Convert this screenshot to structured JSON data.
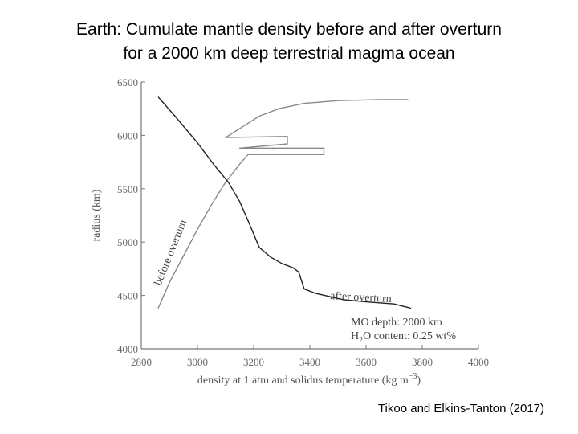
{
  "header": {
    "title_line1": "Earth: Cumulate mantle density before and after overturn",
    "title_line2": "for a 2000 km deep terrestrial magma ocean"
  },
  "citation": "Tikoo and Elkins-Tanton (2017)",
  "chart_data": {
    "type": "line",
    "xlabel": "density at 1 atm and solidus temperature (kg m",
    "xlabel_sup": "−3",
    "xlabel_end": ")",
    "ylabel": "radius (km)",
    "xlim": [
      2800,
      4000
    ],
    "ylim": [
      4000,
      6500
    ],
    "xticks": [
      2800,
      3000,
      3200,
      3400,
      3600,
      3800,
      4000
    ],
    "yticks": [
      4000,
      4500,
      5000,
      5500,
      6000,
      6500
    ],
    "grid": false,
    "colors": {
      "before": "#8a8a8a",
      "after": "#222222",
      "axis": "#777777"
    },
    "series": [
      {
        "name": "before overturn",
        "points": [
          [
            2860,
            4380
          ],
          [
            2900,
            4620
          ],
          [
            2950,
            4870
          ],
          [
            3000,
            5120
          ],
          [
            3050,
            5350
          ],
          [
            3100,
            5560
          ],
          [
            3150,
            5730
          ],
          [
            3180,
            5820
          ],
          [
            3450,
            5820
          ],
          [
            3450,
            5880
          ],
          [
            3150,
            5880
          ],
          [
            3320,
            5920
          ],
          [
            3320,
            5990
          ],
          [
            3100,
            5980
          ],
          [
            3160,
            6080
          ],
          [
            3220,
            6180
          ],
          [
            3290,
            6250
          ],
          [
            3380,
            6300
          ],
          [
            3500,
            6325
          ],
          [
            3650,
            6335
          ],
          [
            3750,
            6335
          ]
        ]
      },
      {
        "name": "after overturn",
        "points": [
          [
            2860,
            6360
          ],
          [
            2920,
            6180
          ],
          [
            3000,
            5930
          ],
          [
            3060,
            5720
          ],
          [
            3110,
            5560
          ],
          [
            3150,
            5380
          ],
          [
            3180,
            5200
          ],
          [
            3220,
            4950
          ],
          [
            3260,
            4860
          ],
          [
            3300,
            4800
          ],
          [
            3340,
            4760
          ],
          [
            3360,
            4720
          ],
          [
            3380,
            4560
          ],
          [
            3420,
            4520
          ],
          [
            3470,
            4490
          ],
          [
            3520,
            4460
          ],
          [
            3600,
            4440
          ],
          [
            3700,
            4420
          ],
          [
            3730,
            4400
          ],
          [
            3760,
            4380
          ]
        ]
      }
    ],
    "annotations": {
      "before": "before overturn",
      "after": "after overturn",
      "mo_depth": "MO depth: 2000 km",
      "h2o_prefix": "H",
      "h2o_sub": "2",
      "h2o_suffix": "O content: 0.25 wt%"
    }
  }
}
